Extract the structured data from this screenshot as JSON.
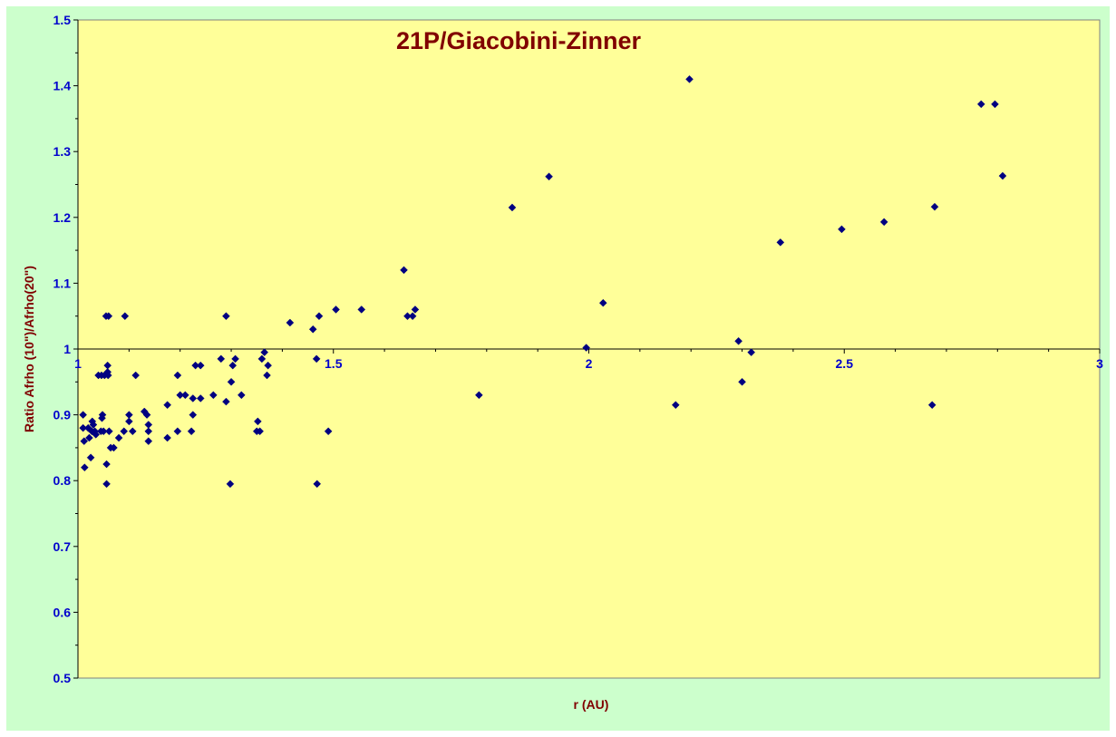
{
  "chart_data": {
    "type": "scatter",
    "title": "21P/Giacobini-Zinner",
    "xlabel": "r (AU)",
    "ylabel": "Ratio Afrho (10\")/Afrho(20\")",
    "xlim": [
      1,
      3
    ],
    "ylim": [
      0.5,
      1.5
    ],
    "x_ticks": [
      "1",
      "1.5",
      "2",
      "2.5",
      "3"
    ],
    "y_ticks": [
      "0.5",
      "0.6",
      "0.7",
      "0.8",
      "0.9",
      "1",
      "1.1",
      "1.2",
      "1.3",
      "1.4",
      "1.5"
    ],
    "x_axis_crosses_at": 1,
    "grid": false,
    "colors": {
      "plot_background": "#ffff99",
      "chart_background": "#ccffcc",
      "marker": "#000080",
      "title": "#800000",
      "tick_labels": "#0000cc"
    },
    "points": [
      {
        "x": 1.01,
        "y": 0.9
      },
      {
        "x": 1.01,
        "y": 0.88
      },
      {
        "x": 1.012,
        "y": 0.86
      },
      {
        "x": 1.013,
        "y": 0.82
      },
      {
        "x": 1.02,
        "y": 0.88
      },
      {
        "x": 1.022,
        "y": 0.865
      },
      {
        "x": 1.025,
        "y": 0.835
      },
      {
        "x": 1.027,
        "y": 0.875
      },
      {
        "x": 1.028,
        "y": 0.89
      },
      {
        "x": 1.03,
        "y": 0.885
      },
      {
        "x": 1.033,
        "y": 0.875
      },
      {
        "x": 1.035,
        "y": 0.87
      },
      {
        "x": 1.04,
        "y": 0.96
      },
      {
        "x": 1.045,
        "y": 0.875
      },
      {
        "x": 1.046,
        "y": 0.96
      },
      {
        "x": 1.047,
        "y": 0.895
      },
      {
        "x": 1.048,
        "y": 0.9
      },
      {
        "x": 1.05,
        "y": 0.875
      },
      {
        "x": 1.052,
        "y": 0.96
      },
      {
        "x": 1.055,
        "y": 1.05
      },
      {
        "x": 1.056,
        "y": 0.825
      },
      {
        "x": 1.056,
        "y": 0.795
      },
      {
        "x": 1.058,
        "y": 0.975
      },
      {
        "x": 1.058,
        "y": 0.965
      },
      {
        "x": 1.059,
        "y": 0.96
      },
      {
        "x": 1.06,
        "y": 1.05
      },
      {
        "x": 1.061,
        "y": 0.875
      },
      {
        "x": 1.064,
        "y": 0.85
      },
      {
        "x": 1.07,
        "y": 0.85
      },
      {
        "x": 1.08,
        "y": 0.865
      },
      {
        "x": 1.09,
        "y": 0.875
      },
      {
        "x": 1.092,
        "y": 1.05
      },
      {
        "x": 1.1,
        "y": 0.89
      },
      {
        "x": 1.1,
        "y": 0.9
      },
      {
        "x": 1.107,
        "y": 0.875
      },
      {
        "x": 1.113,
        "y": 0.96
      },
      {
        "x": 1.13,
        "y": 0.905
      },
      {
        "x": 1.135,
        "y": 0.9
      },
      {
        "x": 1.138,
        "y": 0.86
      },
      {
        "x": 1.138,
        "y": 0.875
      },
      {
        "x": 1.138,
        "y": 0.885
      },
      {
        "x": 1.175,
        "y": 0.865
      },
      {
        "x": 1.175,
        "y": 0.915
      },
      {
        "x": 1.195,
        "y": 0.875
      },
      {
        "x": 1.195,
        "y": 0.96
      },
      {
        "x": 1.2,
        "y": 0.93
      },
      {
        "x": 1.21,
        "y": 0.93
      },
      {
        "x": 1.222,
        "y": 0.875
      },
      {
        "x": 1.225,
        "y": 0.9
      },
      {
        "x": 1.225,
        "y": 0.925
      },
      {
        "x": 1.23,
        "y": 0.975
      },
      {
        "x": 1.24,
        "y": 0.925
      },
      {
        "x": 1.24,
        "y": 0.975
      },
      {
        "x": 1.265,
        "y": 0.93
      },
      {
        "x": 1.28,
        "y": 0.985
      },
      {
        "x": 1.29,
        "y": 0.92
      },
      {
        "x": 1.29,
        "y": 1.05
      },
      {
        "x": 1.298,
        "y": 0.795
      },
      {
        "x": 1.3,
        "y": 0.95
      },
      {
        "x": 1.303,
        "y": 0.975
      },
      {
        "x": 1.308,
        "y": 0.985
      },
      {
        "x": 1.32,
        "y": 0.93
      },
      {
        "x": 1.35,
        "y": 0.875
      },
      {
        "x": 1.352,
        "y": 0.89
      },
      {
        "x": 1.356,
        "y": 0.875
      },
      {
        "x": 1.36,
        "y": 0.985
      },
      {
        "x": 1.365,
        "y": 0.995
      },
      {
        "x": 1.37,
        "y": 0.96
      },
      {
        "x": 1.372,
        "y": 0.975
      },
      {
        "x": 1.415,
        "y": 1.04
      },
      {
        "x": 1.46,
        "y": 1.03
      },
      {
        "x": 1.467,
        "y": 0.985
      },
      {
        "x": 1.468,
        "y": 0.795
      },
      {
        "x": 1.472,
        "y": 1.05
      },
      {
        "x": 1.49,
        "y": 0.875
      },
      {
        "x": 1.505,
        "y": 1.06
      },
      {
        "x": 1.555,
        "y": 1.06
      },
      {
        "x": 1.638,
        "y": 1.12
      },
      {
        "x": 1.645,
        "y": 1.05
      },
      {
        "x": 1.655,
        "y": 1.05
      },
      {
        "x": 1.66,
        "y": 1.06
      },
      {
        "x": 1.785,
        "y": 0.93
      },
      {
        "x": 1.85,
        "y": 1.215
      },
      {
        "x": 1.922,
        "y": 1.262
      },
      {
        "x": 1.995,
        "y": 1.002
      },
      {
        "x": 2.028,
        "y": 1.07
      },
      {
        "x": 2.17,
        "y": 0.915
      },
      {
        "x": 2.197,
        "y": 1.41
      },
      {
        "x": 2.293,
        "y": 1.012
      },
      {
        "x": 2.3,
        "y": 0.95
      },
      {
        "x": 2.318,
        "y": 0.995
      },
      {
        "x": 2.375,
        "y": 1.162
      },
      {
        "x": 2.495,
        "y": 1.182
      },
      {
        "x": 2.578,
        "y": 1.193
      },
      {
        "x": 2.672,
        "y": 0.915
      },
      {
        "x": 2.677,
        "y": 1.216
      },
      {
        "x": 2.768,
        "y": 1.372
      },
      {
        "x": 2.795,
        "y": 1.372
      },
      {
        "x": 2.81,
        "y": 1.263
      }
    ]
  }
}
